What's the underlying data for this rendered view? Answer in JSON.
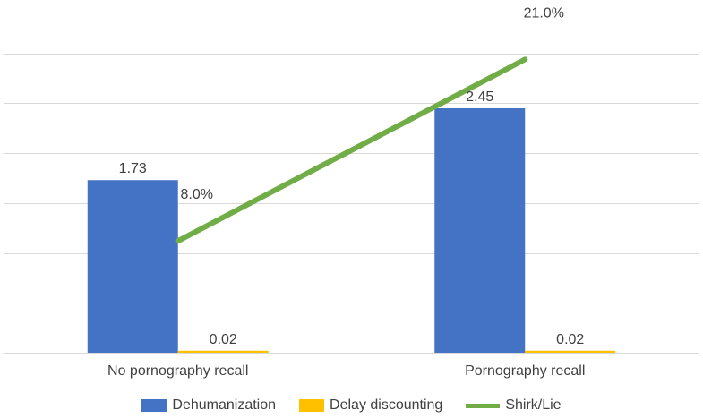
{
  "chart_data": {
    "type": "bar+line",
    "categories": [
      "No pornography recall",
      "Pornography recall"
    ],
    "series": [
      {
        "name": "Dehumanization",
        "type": "bar",
        "values": [
          1.73,
          2.45
        ],
        "labels": [
          "1.73",
          "2.45"
        ],
        "color": "#4472c4"
      },
      {
        "name": "Delay discounting",
        "type": "bar",
        "values": [
          0.02,
          0.02
        ],
        "labels": [
          "0.02",
          "0.02"
        ],
        "color": "#ffc000"
      },
      {
        "name": "Shirk/Lie",
        "type": "line",
        "values": [
          8.0,
          21.0
        ],
        "labels": [
          "8.0%",
          "21.0%"
        ],
        "unit": "%",
        "color": "#70ad47"
      }
    ],
    "bar_axis": {
      "min": 0,
      "max": 3.5,
      "step": 0.5
    },
    "line_axis": {
      "min": 0,
      "max": 25
    },
    "grid": true,
    "legend_position": "bottom"
  }
}
